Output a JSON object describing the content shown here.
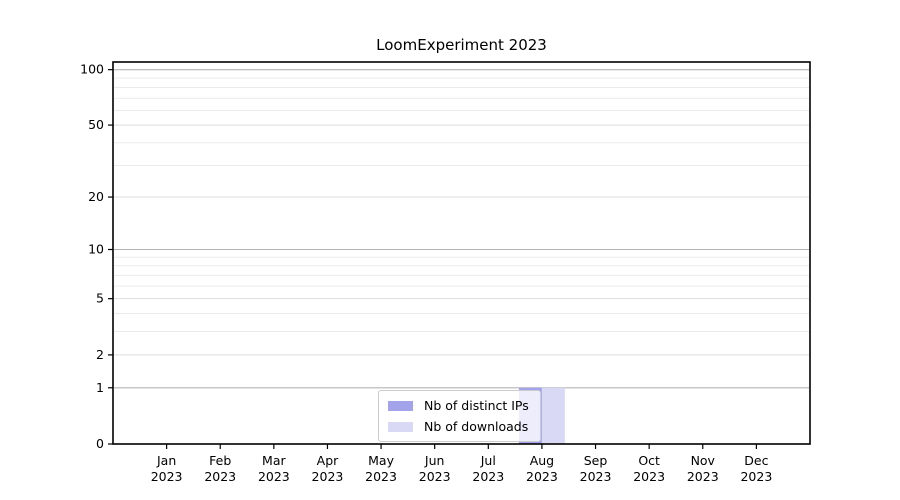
{
  "chart_data": {
    "type": "bar",
    "title": "LoomExperiment 2023",
    "categories": [
      "Jan",
      "Feb",
      "Mar",
      "Apr",
      "May",
      "Jun",
      "Jul",
      "Aug",
      "Sep",
      "Oct",
      "Nov",
      "Dec"
    ],
    "x_year_label": "2023",
    "series": [
      {
        "name": "Nb of distinct IPs",
        "color": "#a3a3ec",
        "values": [
          0,
          0,
          0,
          0,
          0,
          0,
          0,
          1,
          0,
          0,
          0,
          0
        ]
      },
      {
        "name": "Nb of downloads",
        "color": "#d9d9f6",
        "values": [
          0,
          0,
          0,
          0,
          0,
          0,
          0,
          1,
          0,
          0,
          0,
          0
        ]
      }
    ],
    "xlabel": "",
    "ylabel": "",
    "yscale": "log1p",
    "ylim": [
      0,
      110
    ],
    "yticks": [
      0,
      1,
      2,
      5,
      10,
      20,
      50,
      100
    ],
    "ytick_labels": [
      "0",
      "1",
      "2",
      "5",
      "10",
      "20",
      "50",
      "100"
    ],
    "grid": {
      "on": true,
      "major_values": [
        1,
        10,
        100
      ],
      "minor_values": [
        2,
        3,
        4,
        5,
        6,
        7,
        8,
        9,
        20,
        30,
        40,
        50,
        60,
        70,
        80,
        90
      ],
      "major_color": "#b3b3b3",
      "minor_color": "#ebebeb"
    },
    "legend_position": "lower center",
    "axis_color": "#000000",
    "background": "#ffffff"
  }
}
